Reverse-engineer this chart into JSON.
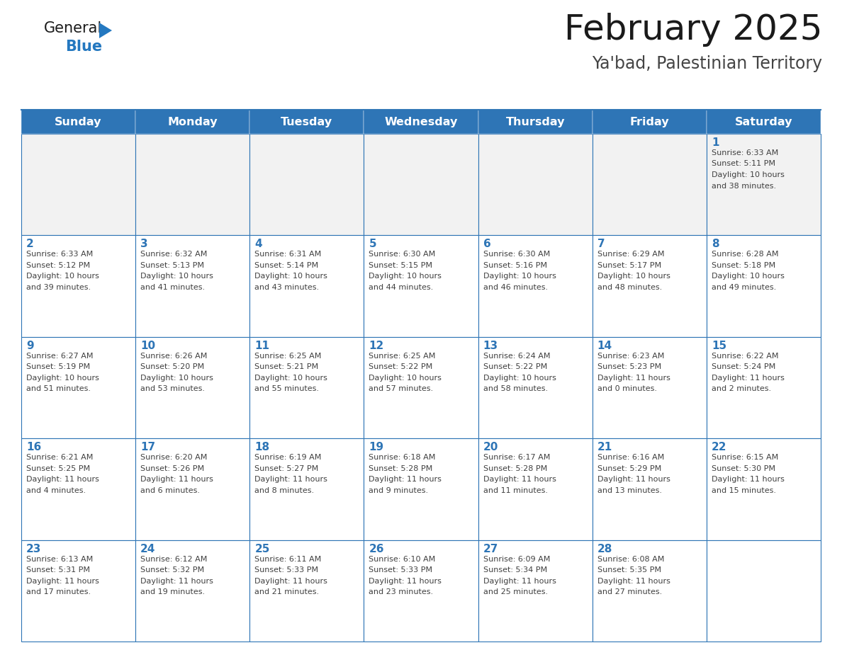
{
  "title": "February 2025",
  "subtitle": "Ya'bad, Palestinian Territory",
  "days_of_week": [
    "Sunday",
    "Monday",
    "Tuesday",
    "Wednesday",
    "Thursday",
    "Friday",
    "Saturday"
  ],
  "header_bg": "#2e75b6",
  "header_text": "#ffffff",
  "cell_bg_light": "#f2f2f2",
  "cell_bg_white": "#ffffff",
  "border_color": "#2e75b6",
  "day_num_color": "#2e75b6",
  "text_color": "#404040",
  "calendar": [
    [
      null,
      null,
      null,
      null,
      null,
      null,
      {
        "day": 1,
        "sunrise": "6:33 AM",
        "sunset": "5:11 PM",
        "daylight": "10 hours and 38 minutes."
      }
    ],
    [
      {
        "day": 2,
        "sunrise": "6:33 AM",
        "sunset": "5:12 PM",
        "daylight": "10 hours and 39 minutes."
      },
      {
        "day": 3,
        "sunrise": "6:32 AM",
        "sunset": "5:13 PM",
        "daylight": "10 hours and 41 minutes."
      },
      {
        "day": 4,
        "sunrise": "6:31 AM",
        "sunset": "5:14 PM",
        "daylight": "10 hours and 43 minutes."
      },
      {
        "day": 5,
        "sunrise": "6:30 AM",
        "sunset": "5:15 PM",
        "daylight": "10 hours and 44 minutes."
      },
      {
        "day": 6,
        "sunrise": "6:30 AM",
        "sunset": "5:16 PM",
        "daylight": "10 hours and 46 minutes."
      },
      {
        "day": 7,
        "sunrise": "6:29 AM",
        "sunset": "5:17 PM",
        "daylight": "10 hours and 48 minutes."
      },
      {
        "day": 8,
        "sunrise": "6:28 AM",
        "sunset": "5:18 PM",
        "daylight": "10 hours and 49 minutes."
      }
    ],
    [
      {
        "day": 9,
        "sunrise": "6:27 AM",
        "sunset": "5:19 PM",
        "daylight": "10 hours and 51 minutes."
      },
      {
        "day": 10,
        "sunrise": "6:26 AM",
        "sunset": "5:20 PM",
        "daylight": "10 hours and 53 minutes."
      },
      {
        "day": 11,
        "sunrise": "6:25 AM",
        "sunset": "5:21 PM",
        "daylight": "10 hours and 55 minutes."
      },
      {
        "day": 12,
        "sunrise": "6:25 AM",
        "sunset": "5:22 PM",
        "daylight": "10 hours and 57 minutes."
      },
      {
        "day": 13,
        "sunrise": "6:24 AM",
        "sunset": "5:22 PM",
        "daylight": "10 hours and 58 minutes."
      },
      {
        "day": 14,
        "sunrise": "6:23 AM",
        "sunset": "5:23 PM",
        "daylight": "11 hours and 0 minutes."
      },
      {
        "day": 15,
        "sunrise": "6:22 AM",
        "sunset": "5:24 PM",
        "daylight": "11 hours and 2 minutes."
      }
    ],
    [
      {
        "day": 16,
        "sunrise": "6:21 AM",
        "sunset": "5:25 PM",
        "daylight": "11 hours and 4 minutes."
      },
      {
        "day": 17,
        "sunrise": "6:20 AM",
        "sunset": "5:26 PM",
        "daylight": "11 hours and 6 minutes."
      },
      {
        "day": 18,
        "sunrise": "6:19 AM",
        "sunset": "5:27 PM",
        "daylight": "11 hours and 8 minutes."
      },
      {
        "day": 19,
        "sunrise": "6:18 AM",
        "sunset": "5:28 PM",
        "daylight": "11 hours and 9 minutes."
      },
      {
        "day": 20,
        "sunrise": "6:17 AM",
        "sunset": "5:28 PM",
        "daylight": "11 hours and 11 minutes."
      },
      {
        "day": 21,
        "sunrise": "6:16 AM",
        "sunset": "5:29 PM",
        "daylight": "11 hours and 13 minutes."
      },
      {
        "day": 22,
        "sunrise": "6:15 AM",
        "sunset": "5:30 PM",
        "daylight": "11 hours and 15 minutes."
      }
    ],
    [
      {
        "day": 23,
        "sunrise": "6:13 AM",
        "sunset": "5:31 PM",
        "daylight": "11 hours and 17 minutes."
      },
      {
        "day": 24,
        "sunrise": "6:12 AM",
        "sunset": "5:32 PM",
        "daylight": "11 hours and 19 minutes."
      },
      {
        "day": 25,
        "sunrise": "6:11 AM",
        "sunset": "5:33 PM",
        "daylight": "11 hours and 21 minutes."
      },
      {
        "day": 26,
        "sunrise": "6:10 AM",
        "sunset": "5:33 PM",
        "daylight": "11 hours and 23 minutes."
      },
      {
        "day": 27,
        "sunrise": "6:09 AM",
        "sunset": "5:34 PM",
        "daylight": "11 hours and 25 minutes."
      },
      {
        "day": 28,
        "sunrise": "6:08 AM",
        "sunset": "5:35 PM",
        "daylight": "11 hours and 27 minutes."
      },
      null
    ]
  ],
  "logo_general_color": "#1a1a1a",
  "logo_blue_color": "#2478c0",
  "logo_triangle_color": "#2478c0"
}
